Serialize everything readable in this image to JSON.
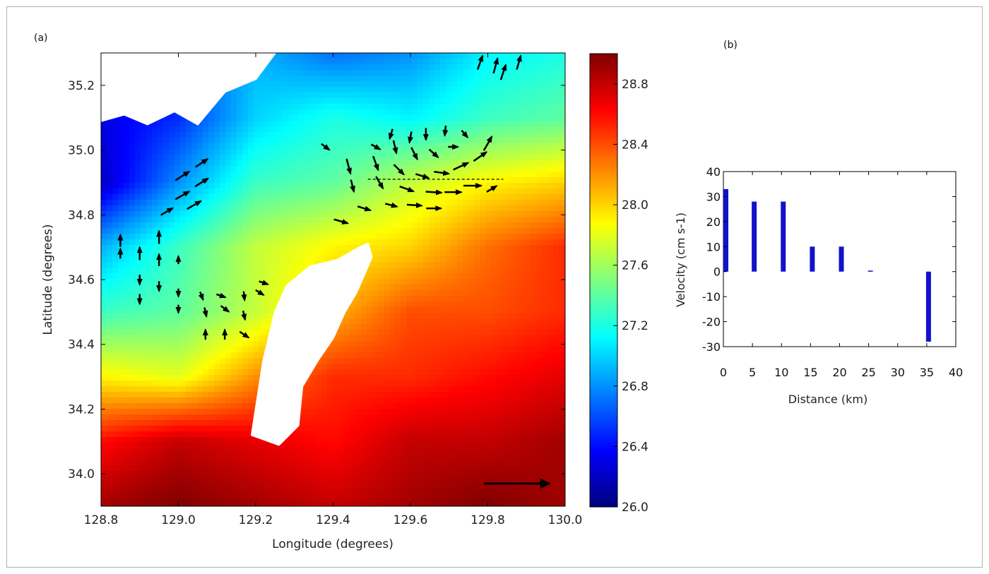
{
  "panel_a_label": "(a)",
  "panel_b_label": "(b)",
  "colors": {
    "colormap": [
      "#00007f",
      "#0000ff",
      "#007fff",
      "#00ffff",
      "#7fff7f",
      "#ffff00",
      "#ff7f00",
      "#ff0000",
      "#7f0000"
    ],
    "land": "#ffffff",
    "vector": "#000000",
    "bar": "#1212cc"
  },
  "chart_data": [
    {
      "panel": "(a)",
      "type": "heatmap",
      "title": "",
      "xlabel": "Longitude (degrees)",
      "ylabel": "Latitude (degrees)",
      "xlim": [
        128.8,
        130.0
      ],
      "ylim": [
        33.9,
        35.3
      ],
      "xticks": [
        "128.8",
        "129.0",
        "129.2",
        "129.4",
        "129.6",
        "129.8",
        "130.0"
      ],
      "yticks": [
        "34.0",
        "34.2",
        "34.4",
        "34.6",
        "34.8",
        "35.0",
        "35.2"
      ],
      "colorbar": {
        "range": [
          26.0,
          29.0
        ],
        "ticks": [
          "26.0",
          "26.4",
          "26.8",
          "27.2",
          "27.6",
          "28.0",
          "28.4",
          "28.8"
        ]
      },
      "temperature_grid": {
        "lon": [
          128.8,
          129.0,
          129.2,
          129.4,
          129.6,
          129.8,
          130.0
        ],
        "lat": [
          35.3,
          35.1,
          34.9,
          34.7,
          34.5,
          34.3,
          34.1,
          33.9
        ],
        "values": [
          [
            26.9,
            26.6,
            26.9,
            26.7,
            26.8,
            27.1,
            27.2
          ],
          [
            26.3,
            26.5,
            27.0,
            27.2,
            27.1,
            27.3,
            27.4
          ],
          [
            26.2,
            26.8,
            27.3,
            27.4,
            27.7,
            27.9,
            28.0
          ],
          [
            26.9,
            27.3,
            27.7,
            27.9,
            28.0,
            28.3,
            28.5
          ],
          [
            27.3,
            27.4,
            27.7,
            28.1,
            28.4,
            28.4,
            28.5
          ],
          [
            27.9,
            27.8,
            28.2,
            28.5,
            28.5,
            28.6,
            28.7
          ],
          [
            28.6,
            28.8,
            28.7,
            28.6,
            28.8,
            28.8,
            28.9
          ],
          [
            28.9,
            29.0,
            28.9,
            28.8,
            28.9,
            29.0,
            28.9
          ]
        ]
      },
      "land_masses": [
        {
          "name": "Korean coast",
          "outline": [
            [
              128.8,
              35.3
            ],
            [
              129.25,
              35.3
            ],
            [
              129.2,
              35.22
            ],
            [
              129.12,
              35.18
            ],
            [
              129.05,
              35.08
            ],
            [
              128.99,
              35.12
            ],
            [
              128.92,
              35.08
            ],
            [
              128.86,
              35.11
            ],
            [
              128.8,
              35.09
            ]
          ]
        },
        {
          "name": "Tsushima",
          "outline": [
            [
              129.47,
              34.7
            ],
            [
              129.49,
              34.71
            ],
            [
              129.5,
              34.67
            ],
            [
              129.46,
              34.56
            ],
            [
              129.43,
              34.5
            ],
            [
              129.4,
              34.42
            ],
            [
              129.36,
              34.35
            ],
            [
              129.32,
              34.27
            ],
            [
              129.31,
              34.15
            ],
            [
              129.26,
              34.09
            ],
            [
              129.19,
              34.12
            ],
            [
              129.22,
              34.35
            ],
            [
              129.25,
              34.5
            ],
            [
              129.28,
              34.58
            ],
            [
              129.34,
              34.64
            ],
            [
              129.41,
              34.66
            ]
          ]
        }
      ],
      "transect": {
        "lon": [
          129.49,
          129.84
        ],
        "lat": [
          34.91,
          34.91
        ]
      },
      "reference_arrow": {
        "lon": [
          129.79,
          129.96
        ],
        "lat": [
          33.97,
          33.97
        ]
      },
      "current_vectors": [
        {
          "lon": 129.78,
          "lat": 35.27,
          "u": 0.5,
          "v": 1.4
        },
        {
          "lon": 129.82,
          "lat": 35.26,
          "u": 0.4,
          "v": 1.5
        },
        {
          "lon": 129.84,
          "lat": 35.24,
          "u": 0.5,
          "v": 1.5
        },
        {
          "lon": 129.88,
          "lat": 35.27,
          "u": 0.4,
          "v": 1.4
        },
        {
          "lon": 129.01,
          "lat": 34.92,
          "u": 1.4,
          "v": 0.9
        },
        {
          "lon": 129.06,
          "lat": 34.96,
          "u": 1.2,
          "v": 0.8
        },
        {
          "lon": 129.01,
          "lat": 34.86,
          "u": 1.4,
          "v": 0.8
        },
        {
          "lon": 129.06,
          "lat": 34.9,
          "u": 1.3,
          "v": 0.8
        },
        {
          "lon": 128.97,
          "lat": 34.81,
          "u": 1.2,
          "v": 0.7
        },
        {
          "lon": 129.04,
          "lat": 34.83,
          "u": 1.4,
          "v": 0.8
        },
        {
          "lon": 128.85,
          "lat": 34.72,
          "u": 0.0,
          "v": 1.2
        },
        {
          "lon": 128.85,
          "lat": 34.68,
          "u": 0.0,
          "v": 1.0
        },
        {
          "lon": 128.9,
          "lat": 34.68,
          "u": 0.0,
          "v": 1.3
        },
        {
          "lon": 128.9,
          "lat": 34.6,
          "u": 0.0,
          "v": -1.0
        },
        {
          "lon": 128.9,
          "lat": 34.54,
          "u": 0.0,
          "v": -1.0
        },
        {
          "lon": 128.95,
          "lat": 34.73,
          "u": 0.0,
          "v": 1.3
        },
        {
          "lon": 128.95,
          "lat": 34.66,
          "u": 0.0,
          "v": 1.2
        },
        {
          "lon": 128.95,
          "lat": 34.58,
          "u": 0.0,
          "v": -1.0
        },
        {
          "lon": 129.0,
          "lat": 34.66,
          "u": 0.0,
          "v": 0.8
        },
        {
          "lon": 129.0,
          "lat": 34.56,
          "u": 0.0,
          "v": -0.8
        },
        {
          "lon": 129.0,
          "lat": 34.51,
          "u": 0.0,
          "v": -0.8
        },
        {
          "lon": 129.06,
          "lat": 34.55,
          "u": 0.3,
          "v": -0.8
        },
        {
          "lon": 129.07,
          "lat": 34.5,
          "u": 0.2,
          "v": -0.9
        },
        {
          "lon": 129.11,
          "lat": 34.55,
          "u": 0.9,
          "v": -0.3
        },
        {
          "lon": 129.12,
          "lat": 34.51,
          "u": 0.8,
          "v": -0.6
        },
        {
          "lon": 129.17,
          "lat": 34.55,
          "u": 0.1,
          "v": -0.9
        },
        {
          "lon": 129.17,
          "lat": 34.49,
          "u": 0.2,
          "v": -0.9
        },
        {
          "lon": 129.21,
          "lat": 34.56,
          "u": 0.8,
          "v": -0.5
        },
        {
          "lon": 129.22,
          "lat": 34.59,
          "u": 0.9,
          "v": -0.3
        },
        {
          "lon": 129.07,
          "lat": 34.43,
          "u": 0.0,
          "v": 1.0
        },
        {
          "lon": 129.12,
          "lat": 34.43,
          "u": 0.0,
          "v": 1.0
        },
        {
          "lon": 129.17,
          "lat": 34.43,
          "u": 0.9,
          "v": -0.6
        },
        {
          "lon": 129.38,
          "lat": 35.01,
          "u": 0.8,
          "v": -0.6
        },
        {
          "lon": 129.44,
          "lat": 34.95,
          "u": 0.4,
          "v": -1.5
        },
        {
          "lon": 129.45,
          "lat": 34.89,
          "u": 0.3,
          "v": -1.2
        },
        {
          "lon": 129.48,
          "lat": 34.82,
          "u": 1.3,
          "v": -0.4
        },
        {
          "lon": 129.42,
          "lat": 34.78,
          "u": 1.4,
          "v": -0.4
        },
        {
          "lon": 129.51,
          "lat": 35.01,
          "u": 0.9,
          "v": -0.5
        },
        {
          "lon": 129.51,
          "lat": 34.96,
          "u": 0.5,
          "v": -1.4
        },
        {
          "lon": 129.52,
          "lat": 34.9,
          "u": 0.7,
          "v": -1.2
        },
        {
          "lon": 129.55,
          "lat": 34.83,
          "u": 1.2,
          "v": -0.3
        },
        {
          "lon": 129.55,
          "lat": 35.05,
          "u": -0.3,
          "v": -1.0
        },
        {
          "lon": 129.56,
          "lat": 35.01,
          "u": 0.3,
          "v": -1.3
        },
        {
          "lon": 129.57,
          "lat": 34.94,
          "u": 1.0,
          "v": -1.0
        },
        {
          "lon": 129.59,
          "lat": 34.88,
          "u": 1.4,
          "v": -0.5
        },
        {
          "lon": 129.61,
          "lat": 34.83,
          "u": 1.5,
          "v": -0.1
        },
        {
          "lon": 129.6,
          "lat": 35.04,
          "u": -0.2,
          "v": -1.1
        },
        {
          "lon": 129.61,
          "lat": 34.99,
          "u": 0.6,
          "v": -1.2
        },
        {
          "lon": 129.63,
          "lat": 34.92,
          "u": 1.3,
          "v": -0.4
        },
        {
          "lon": 129.66,
          "lat": 34.87,
          "u": 1.6,
          "v": -0.1
        },
        {
          "lon": 129.66,
          "lat": 34.82,
          "u": 1.5,
          "v": 0.0
        },
        {
          "lon": 129.64,
          "lat": 35.05,
          "u": 0.0,
          "v": -1.2
        },
        {
          "lon": 129.66,
          "lat": 34.99,
          "u": 0.9,
          "v": -0.8
        },
        {
          "lon": 129.68,
          "lat": 34.93,
          "u": 1.5,
          "v": -0.2
        },
        {
          "lon": 129.71,
          "lat": 34.87,
          "u": 1.7,
          "v": 0.0
        },
        {
          "lon": 129.69,
          "lat": 35.06,
          "u": -0.1,
          "v": -1.0
        },
        {
          "lon": 129.71,
          "lat": 35.01,
          "u": 1.0,
          "v": 0.0
        },
        {
          "lon": 129.73,
          "lat": 34.95,
          "u": 1.5,
          "v": 0.7
        },
        {
          "lon": 129.76,
          "lat": 34.89,
          "u": 1.8,
          "v": 0.0
        },
        {
          "lon": 129.74,
          "lat": 35.05,
          "u": 0.6,
          "v": -0.7
        },
        {
          "lon": 129.78,
          "lat": 34.98,
          "u": 1.3,
          "v": 0.9
        },
        {
          "lon": 129.8,
          "lat": 35.02,
          "u": 0.8,
          "v": 1.4
        },
        {
          "lon": 129.81,
          "lat": 34.88,
          "u": 1.0,
          "v": 0.6
        }
      ]
    },
    {
      "panel": "(b)",
      "type": "bar",
      "title": "",
      "xlabel": "Distance (km)",
      "ylabel": "Velocity (cm s-1)",
      "xlim": [
        0,
        40
      ],
      "ylim": [
        -30,
        40
      ],
      "xticks": [
        "0",
        "5",
        "10",
        "15",
        "20",
        "25",
        "30",
        "35",
        "40"
      ],
      "yticks": [
        "40",
        "30",
        "20",
        "10",
        "0",
        "-10",
        "-20",
        "-30"
      ],
      "x": [
        0,
        5,
        10,
        15,
        20,
        25,
        35
      ],
      "values": [
        33,
        28,
        28,
        10,
        10,
        0.4,
        -28
      ]
    }
  ]
}
